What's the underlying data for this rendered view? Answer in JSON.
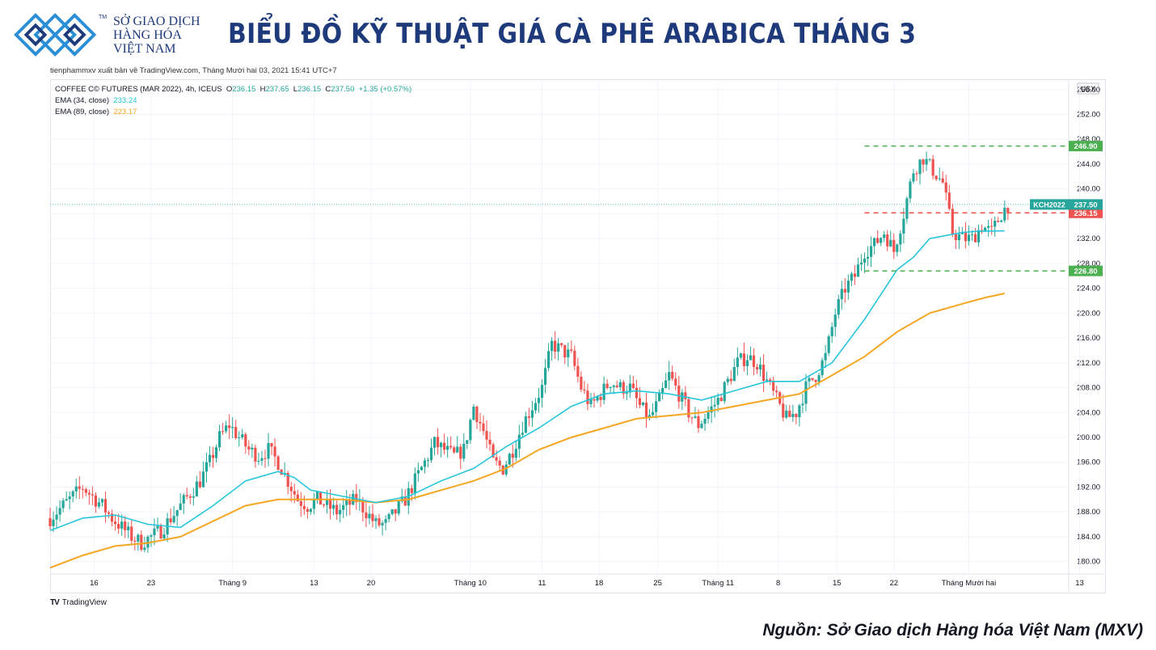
{
  "header": {
    "logo_lines": [
      "SỞ GIAO DỊCH",
      "HÀNG HÓA",
      "VIỆT NAM"
    ],
    "logo_tm": "TM",
    "title": "BIỂU ĐỒ KỸ THUẬT GIÁ CÀ PHÊ ARABICA THÁNG 3"
  },
  "published": "tienphammxv xuất bản về TradingView.com, Tháng Mười hai 03, 2021 15:41 UTC+7",
  "legend": {
    "symbol": "COFFEE C© FUTURES (MAR 2022), 4h, ICEUS",
    "o_label": "O",
    "o": "236.15",
    "h_label": "H",
    "h": "237.65",
    "l_label": "L",
    "l": "236.15",
    "c_label": "C",
    "c": "237.50",
    "change": "+1.35 (+0.57%)",
    "ema34_label": "EMA (34, close)",
    "ema34": "233.24",
    "ema89_label": "EMA (89, close)",
    "ema89": "223.17"
  },
  "tradingview_label": "TradingView",
  "source": "Nguồn: Sở Giao dịch Hàng hóa Việt Nam (MXV)",
  "colors": {
    "up": "#26a69a",
    "down": "#ef5350",
    "ema34": "#26c6da",
    "ema89": "#f5a623",
    "title": "#1e3a7b",
    "level": "#4caf50"
  },
  "chart_data": {
    "type": "candlestick",
    "currency": "USX",
    "ylim": [
      178,
      257.4
    ],
    "y_ticks": [
      "180.00",
      "184.00",
      "188.00",
      "192.00",
      "196.00",
      "200.00",
      "204.00",
      "208.00",
      "212.00",
      "216.00",
      "220.00",
      "224.00",
      "228.00",
      "232.00",
      "236.00",
      "240.00",
      "244.00",
      "248.00",
      "252.00",
      "256.00"
    ],
    "x_ticks": [
      {
        "label": "16",
        "t": 1.35
      },
      {
        "label": "23",
        "t": 3.1
      },
      {
        "label": "Tháng 9",
        "t": 5.6
      },
      {
        "label": "13",
        "t": 8.1
      },
      {
        "label": "20",
        "t": 9.85
      },
      {
        "label": "Tháng 10",
        "t": 12.9
      },
      {
        "label": "11",
        "t": 15.1
      },
      {
        "label": "18",
        "t": 16.85
      },
      {
        "label": "25",
        "t": 18.65
      },
      {
        "label": "Tháng 11",
        "t": 20.5
      },
      {
        "label": "8",
        "t": 22.35
      },
      {
        "label": "15",
        "t": 24.15
      },
      {
        "label": "22",
        "t": 25.9
      },
      {
        "label": "Tháng Mười hai",
        "t": 28.2
      },
      {
        "label": "13",
        "t": 31.6
      }
    ],
    "close": [
      [
        0,
        187
      ],
      [
        0.3,
        188.5
      ],
      [
        0.7,
        190.5
      ],
      [
        1.0,
        192
      ],
      [
        1.3,
        190.5
      ],
      [
        1.6,
        189
      ],
      [
        1.9,
        187
      ],
      [
        2.2,
        185.5
      ],
      [
        2.5,
        184
      ],
      [
        2.8,
        183
      ],
      [
        3.1,
        184
      ],
      [
        3.4,
        185
      ],
      [
        3.7,
        187
      ],
      [
        4.0,
        189
      ],
      [
        4.3,
        191
      ],
      [
        4.6,
        193
      ],
      [
        4.9,
        196
      ],
      [
        5.2,
        200
      ],
      [
        5.5,
        202
      ],
      [
        5.8,
        200
      ],
      [
        6.1,
        198
      ],
      [
        6.4,
        197
      ],
      [
        6.7,
        198
      ],
      [
        7.0,
        196
      ],
      [
        7.3,
        193
      ],
      [
        7.6,
        190
      ],
      [
        7.9,
        189
      ],
      [
        8.2,
        190
      ],
      [
        8.5,
        189
      ],
      [
        8.8,
        188
      ],
      [
        9.1,
        189
      ],
      [
        9.4,
        190
      ],
      [
        9.7,
        188
      ],
      [
        10.0,
        186
      ],
      [
        10.3,
        186
      ],
      [
        10.6,
        188
      ],
      [
        10.9,
        190
      ],
      [
        11.2,
        193
      ],
      [
        11.5,
        196
      ],
      [
        11.8,
        199
      ],
      [
        12.1,
        198
      ],
      [
        12.4,
        197
      ],
      [
        12.7,
        198
      ],
      [
        13.0,
        205
      ],
      [
        13.3,
        201
      ],
      [
        13.6,
        196
      ],
      [
        13.9,
        195
      ],
      [
        14.2,
        198
      ],
      [
        14.5,
        202
      ],
      [
        14.8,
        205
      ],
      [
        15.1,
        208
      ],
      [
        15.4,
        215
      ],
      [
        15.7,
        214
      ],
      [
        16.0,
        213
      ],
      [
        16.3,
        208
      ],
      [
        16.6,
        205
      ],
      [
        16.9,
        207
      ],
      [
        17.2,
        209
      ],
      [
        17.5,
        208
      ],
      [
        17.8,
        208
      ],
      [
        18.1,
        205
      ],
      [
        18.4,
        203
      ],
      [
        18.7,
        206
      ],
      [
        19.0,
        210
      ],
      [
        19.3,
        207
      ],
      [
        19.6,
        204
      ],
      [
        19.9,
        202
      ],
      [
        20.2,
        204
      ],
      [
        20.5,
        206
      ],
      [
        20.8,
        209
      ],
      [
        21.1,
        212
      ],
      [
        21.4,
        213
      ],
      [
        21.7,
        212
      ],
      [
        22.0,
        209
      ],
      [
        22.3,
        206
      ],
      [
        22.6,
        203
      ],
      [
        22.9,
        204
      ],
      [
        23.2,
        208
      ],
      [
        23.5,
        210
      ],
      [
        23.8,
        213
      ],
      [
        24.1,
        220
      ],
      [
        24.4,
        224
      ],
      [
        24.7,
        226
      ],
      [
        25.0,
        230
      ],
      [
        25.3,
        231
      ],
      [
        25.6,
        233
      ],
      [
        25.9,
        230
      ],
      [
        26.2,
        236
      ],
      [
        26.5,
        243
      ],
      [
        26.8,
        245
      ],
      [
        27.1,
        243
      ],
      [
        27.4,
        241
      ],
      [
        27.7,
        233
      ],
      [
        28.0,
        232
      ],
      [
        28.3,
        232
      ],
      [
        28.6,
        234
      ],
      [
        28.9,
        233
      ],
      [
        29.2,
        236
      ],
      [
        29.4,
        237.5
      ]
    ],
    "ema34": [
      [
        0,
        185
      ],
      [
        1,
        187
      ],
      [
        2,
        187.5
      ],
      [
        3,
        186
      ],
      [
        4,
        185.5
      ],
      [
        5,
        189
      ],
      [
        6,
        193
      ],
      [
        7,
        194.5
      ],
      [
        7.5,
        193.5
      ],
      [
        8,
        191.5
      ],
      [
        9,
        190.5
      ],
      [
        10,
        189.5
      ],
      [
        11,
        190.5
      ],
      [
        12,
        193
      ],
      [
        13,
        195
      ],
      [
        14,
        198.5
      ],
      [
        15,
        201.5
      ],
      [
        16,
        205
      ],
      [
        17,
        207
      ],
      [
        18,
        207.5
      ],
      [
        19,
        207
      ],
      [
        20,
        206
      ],
      [
        21,
        207.5
      ],
      [
        22,
        209
      ],
      [
        23,
        209
      ],
      [
        24,
        212
      ],
      [
        25,
        219
      ],
      [
        26,
        227
      ],
      [
        26.5,
        229
      ],
      [
        27,
        232
      ],
      [
        27.5,
        232.5
      ],
      [
        28,
        233
      ],
      [
        28.5,
        233.2
      ],
      [
        29.3,
        233.24
      ]
    ],
    "ema89": [
      [
        0,
        179
      ],
      [
        1,
        181
      ],
      [
        2,
        182.5
      ],
      [
        3,
        183
      ],
      [
        4,
        184
      ],
      [
        5,
        186.5
      ],
      [
        6,
        189
      ],
      [
        7,
        190
      ],
      [
        8,
        190
      ],
      [
        9,
        190
      ],
      [
        10,
        189.5
      ],
      [
        11,
        190
      ],
      [
        12,
        191.5
      ],
      [
        13,
        193
      ],
      [
        14,
        195
      ],
      [
        15,
        198
      ],
      [
        16,
        200
      ],
      [
        17,
        201.5
      ],
      [
        18,
        203
      ],
      [
        19,
        203.5
      ],
      [
        20,
        204
      ],
      [
        21,
        205
      ],
      [
        22,
        206
      ],
      [
        23,
        207
      ],
      [
        24,
        210
      ],
      [
        25,
        213
      ],
      [
        26,
        217
      ],
      [
        27,
        220
      ],
      [
        28,
        221.5
      ],
      [
        28.7,
        222.5
      ],
      [
        29.3,
        223.17
      ]
    ],
    "levels": [
      {
        "label": "246.90",
        "value": 246.9,
        "color": "#4caf50",
        "from": 25
      },
      {
        "label": "236.15",
        "value": 236.15,
        "color": "#ef5350",
        "from": 25
      },
      {
        "label": "226.80",
        "value": 226.8,
        "color": "#4caf50",
        "from": 25
      }
    ],
    "price_tag": {
      "symbol": "KCH2022",
      "value": "237.50",
      "y": 237.5
    }
  }
}
